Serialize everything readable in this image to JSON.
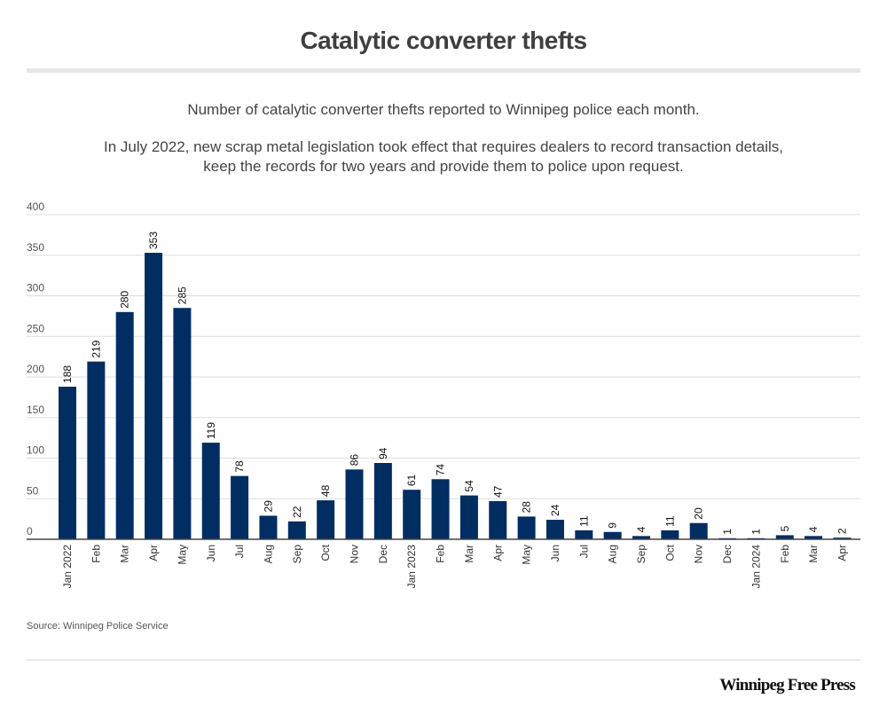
{
  "header": {
    "title": "Catalytic converter thefts",
    "subtitle": "Number of catalytic converter thefts reported to Winnipeg police each month.",
    "note_line1": "In July 2022, new scrap metal legislation took effect that requires dealers to record transaction details,",
    "note_line2": "keep the records for two years and provide them to police upon request."
  },
  "footer": {
    "source": "Source: Winnipeg Police Service",
    "logo": "Winnipeg Free Press"
  },
  "colors": {
    "bar": "#002d62",
    "grid": "#dddddd",
    "axis": "#444444"
  },
  "chart_data": {
    "type": "bar",
    "title": "Catalytic converter thefts",
    "xlabel": "",
    "ylabel": "",
    "ylim": [
      0,
      400
    ],
    "yticks": [
      0,
      50,
      100,
      150,
      200,
      250,
      300,
      350,
      400
    ],
    "grid": true,
    "categories": [
      "Jan 2022",
      "Feb",
      "Mar",
      "Apr",
      "May",
      "Jun",
      "Jul",
      "Aug",
      "Sep",
      "Oct",
      "Nov",
      "Dec",
      "Jan 2023",
      "Feb",
      "Mar",
      "Apr",
      "May",
      "Jun",
      "Jul",
      "Aug",
      "Sep",
      "Oct",
      "Nov",
      "Dec",
      "Jan 2024",
      "Feb",
      "Mar",
      "Apr"
    ],
    "values": [
      188,
      219,
      280,
      353,
      285,
      119,
      78,
      29,
      22,
      48,
      86,
      94,
      61,
      74,
      54,
      47,
      28,
      24,
      11,
      9,
      4,
      11,
      20,
      1,
      1,
      5,
      4,
      2
    ]
  }
}
